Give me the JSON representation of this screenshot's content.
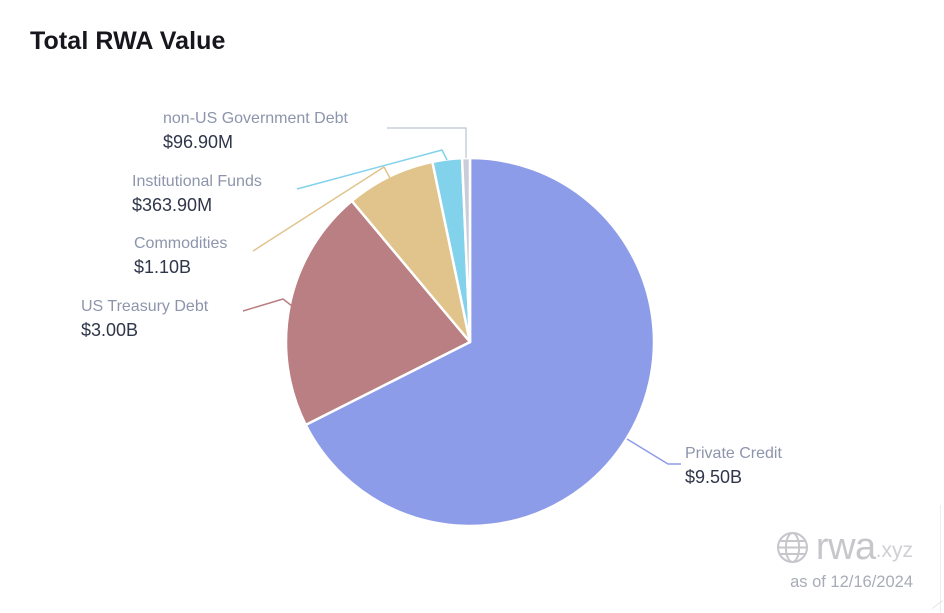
{
  "title": "Total RWA Value",
  "watermark": {
    "brand": "rwa",
    "suffix": ".xyz",
    "as_of": "as of 12/16/2024"
  },
  "chart_data": {
    "type": "pie",
    "title": "Total RWA Value",
    "unit": "USD",
    "total_value_billions": 14.06,
    "start_angle_deg": 0,
    "direction": "clockwise",
    "grid": false,
    "legend_position": "callout-labels",
    "slices": [
      {
        "label": "Private Credit",
        "value_text": "$9.50B",
        "value_billions_usd": 9.5,
        "percent": 67.6,
        "color": "#8d9ce9"
      },
      {
        "label": "US Treasury Debt",
        "value_text": "$3.00B",
        "value_billions_usd": 3.0,
        "percent": 21.3,
        "color": "#ba7f82"
      },
      {
        "label": "Commodities",
        "value_text": "$1.10B",
        "value_billions_usd": 1.1,
        "percent": 7.8,
        "color": "#e0c48c"
      },
      {
        "label": "Institutional Funds",
        "value_text": "$363.90M",
        "value_billions_usd": 0.3639,
        "percent": 2.6,
        "color": "#82d2ec"
      },
      {
        "label": "non-US Government Debt",
        "value_text": "$96.90M",
        "value_billions_usd": 0.0969,
        "percent": 0.7,
        "color": "#c9cdd8"
      }
    ]
  }
}
